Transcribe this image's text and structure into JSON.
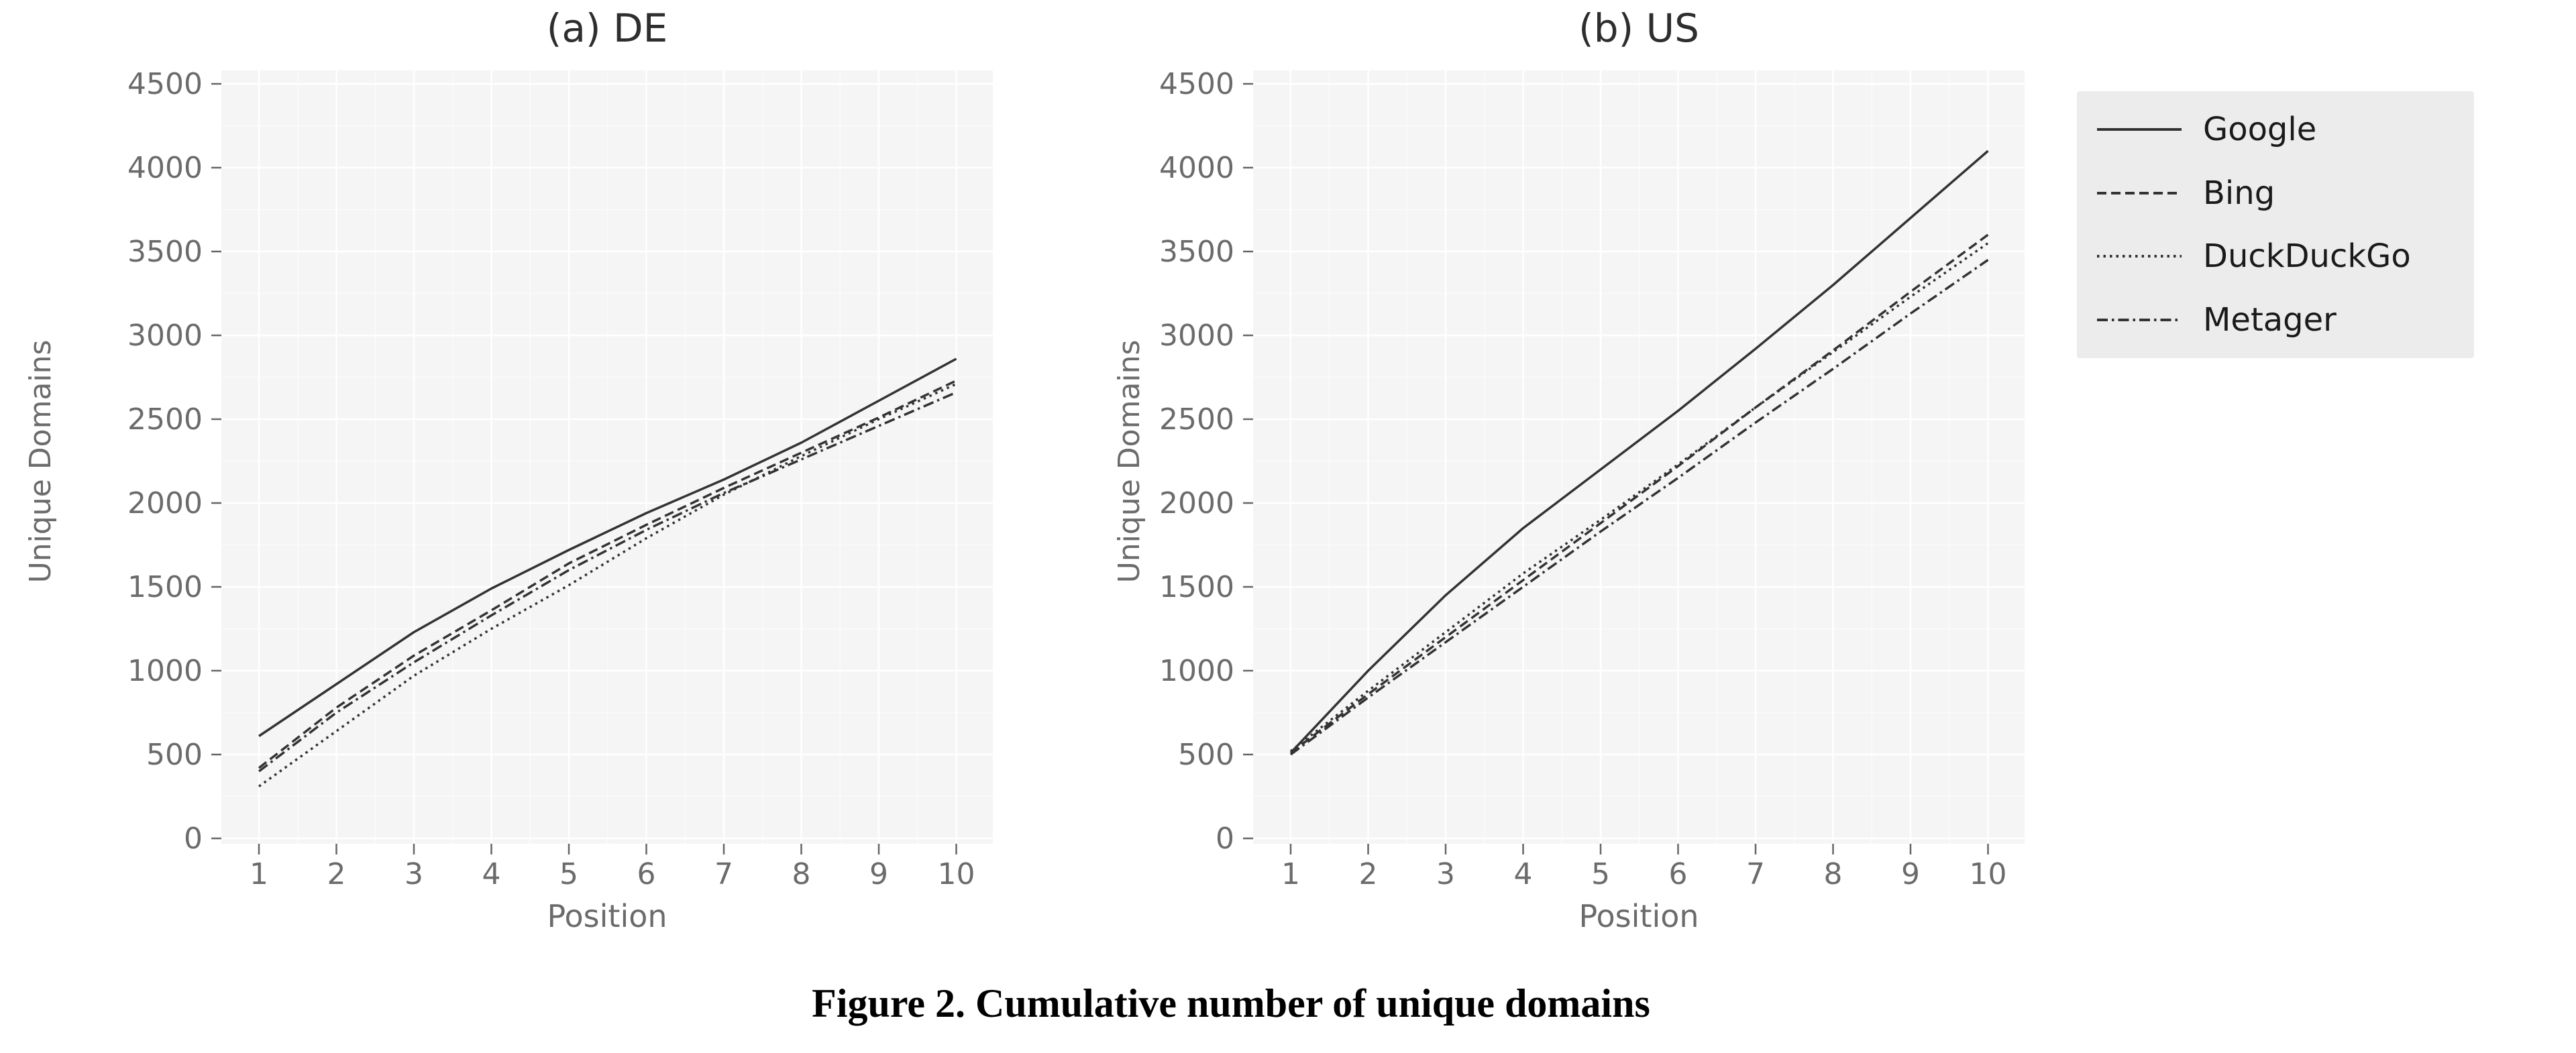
{
  "figure": {
    "caption": "Figure 2. Cumulative number of unique domains"
  },
  "colors": {
    "line": "#333333",
    "plot_bg": "#f5f5f5",
    "grid_major": "#ffffff",
    "grid_minor": "#fbfbfb",
    "tick": "#666666",
    "tick_label": "#6b6b6b",
    "title": "#2e2e2e",
    "legend_bg": "#ececec"
  },
  "legend": {
    "position": "top-right-outside",
    "entries": [
      {
        "label": "Google",
        "style": "solid"
      },
      {
        "label": "Bing",
        "style": "dashed"
      },
      {
        "label": "DuckDuckGo",
        "style": "dotted"
      },
      {
        "label": "Metager",
        "style": "dashdot"
      }
    ]
  },
  "chart_data": [
    {
      "type": "line",
      "id": "de",
      "title": "(a) DE",
      "xlabel": "Position",
      "ylabel": "Unique Domains",
      "x": [
        1,
        2,
        3,
        4,
        5,
        6,
        7,
        8,
        9,
        10
      ],
      "xticks": [
        "1",
        "2",
        "3",
        "4",
        "5",
        "6",
        "7",
        "8",
        "9",
        "10"
      ],
      "yticks": [
        0,
        500,
        1000,
        1500,
        2000,
        2500,
        3000,
        3500,
        4000,
        4500
      ],
      "ylim": [
        0,
        4500
      ],
      "grid": true,
      "series": [
        {
          "name": "Google",
          "style": "solid",
          "values": [
            610,
            920,
            1230,
            1490,
            1720,
            1940,
            2140,
            2360,
            2610,
            2860
          ]
        },
        {
          "name": "Bing",
          "style": "dashed",
          "values": [
            420,
            780,
            1090,
            1360,
            1640,
            1870,
            2090,
            2300,
            2510,
            2730
          ]
        },
        {
          "name": "DuckDuckGo",
          "style": "dotted",
          "values": [
            310,
            640,
            970,
            1250,
            1510,
            1790,
            2050,
            2280,
            2500,
            2710
          ]
        },
        {
          "name": "Metager",
          "style": "dashdot",
          "values": [
            400,
            750,
            1050,
            1330,
            1600,
            1840,
            2060,
            2260,
            2460,
            2660
          ]
        }
      ]
    },
    {
      "type": "line",
      "id": "us",
      "title": "(b) US",
      "xlabel": "Position",
      "ylabel": "Unique Domains",
      "x": [
        1,
        2,
        3,
        4,
        5,
        6,
        7,
        8,
        9,
        10
      ],
      "xticks": [
        "1",
        "2",
        "3",
        "4",
        "5",
        "6",
        "7",
        "8",
        "9",
        "10"
      ],
      "yticks": [
        0,
        500,
        1000,
        1500,
        2000,
        2500,
        3000,
        3500,
        4000,
        4500
      ],
      "ylim": [
        0,
        4500
      ],
      "grid": true,
      "series": [
        {
          "name": "Google",
          "style": "solid",
          "values": [
            510,
            1000,
            1450,
            1850,
            2200,
            2550,
            2920,
            3300,
            3700,
            4100
          ]
        },
        {
          "name": "Bing",
          "style": "dashed",
          "values": [
            510,
            860,
            1200,
            1540,
            1880,
            2220,
            2570,
            2910,
            3260,
            3600
          ]
        },
        {
          "name": "DuckDuckGo",
          "style": "dotted",
          "values": [
            520,
            880,
            1230,
            1580,
            1900,
            2230,
            2570,
            2900,
            3230,
            3550
          ]
        },
        {
          "name": "Metager",
          "style": "dashdot",
          "values": [
            500,
            840,
            1170,
            1500,
            1830,
            2150,
            2480,
            2800,
            3130,
            3450
          ]
        }
      ]
    }
  ]
}
